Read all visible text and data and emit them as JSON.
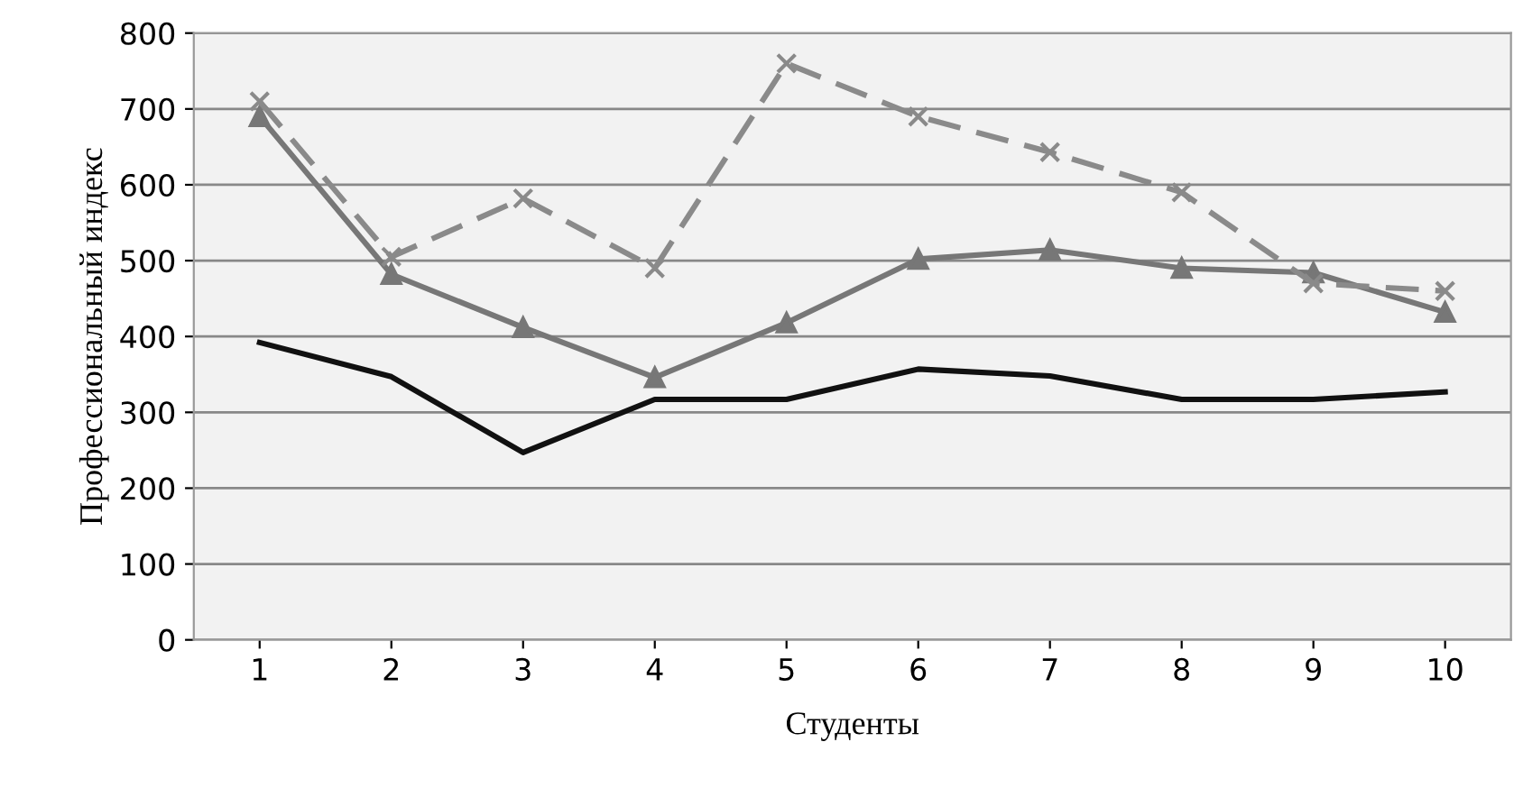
{
  "chart_data": {
    "type": "line",
    "xlabel": "Студенты",
    "ylabel": "Профессиональный индекс",
    "categories": [
      "1",
      "2",
      "3",
      "4",
      "5",
      "6",
      "7",
      "8",
      "9",
      "10"
    ],
    "series": [
      {
        "color": "#8a8a8a",
        "marker": "cross",
        "line_style": "dashed",
        "values": [
          710,
          505,
          582,
          490,
          760,
          690,
          643,
          590,
          470,
          460
        ]
      },
      {
        "color": "#777777",
        "marker": "triangle",
        "line_style": "solid",
        "values": [
          690,
          482,
          412,
          346,
          418,
          502,
          514,
          490,
          484,
          432
        ]
      },
      {
        "color": "#111111",
        "marker": "none",
        "line_style": "solid",
        "values": [
          392,
          347,
          247,
          317,
          317,
          357,
          348,
          317,
          317,
          327
        ]
      }
    ],
    "ylim": [
      0,
      800
    ],
    "yticks": [
      0,
      100,
      200,
      300,
      400,
      500,
      600,
      700,
      800
    ],
    "grid": "y",
    "legend": false
  }
}
